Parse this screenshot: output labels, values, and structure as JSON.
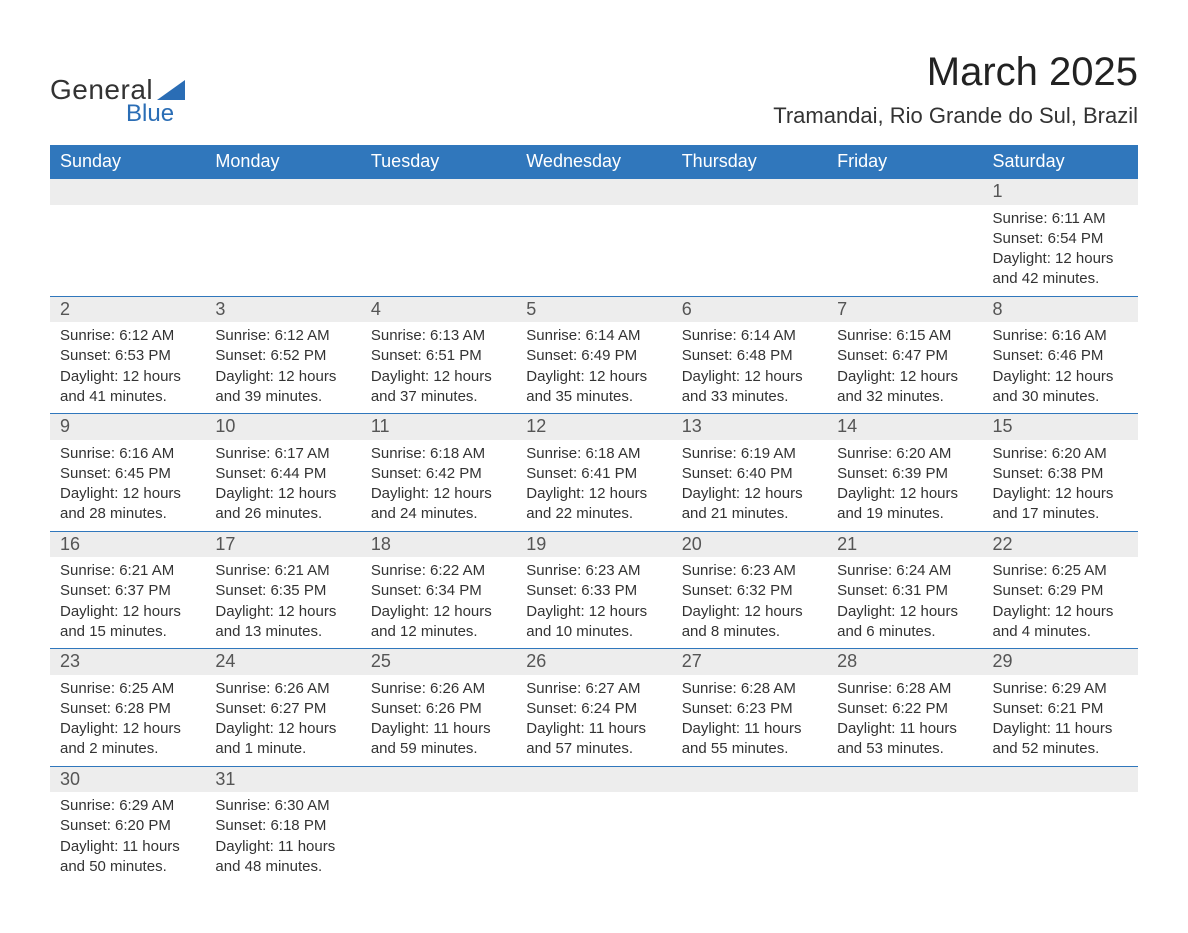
{
  "logo": {
    "top": "General",
    "bottom": "Blue",
    "shape_color": "#2a6db5"
  },
  "header": {
    "title": "March 2025",
    "location": "Tramandai, Rio Grande do Sul, Brazil"
  },
  "calendar": {
    "header_bg": "#3077bc",
    "header_fg": "#ffffff",
    "daynum_bg": "#ededed",
    "rule_color": "#3077bc",
    "day_labels": [
      "Sunday",
      "Monday",
      "Tuesday",
      "Wednesday",
      "Thursday",
      "Friday",
      "Saturday"
    ],
    "weeks": [
      [
        null,
        null,
        null,
        null,
        null,
        null,
        {
          "n": "1",
          "sunrise": "Sunrise: 6:11 AM",
          "sunset": "Sunset: 6:54 PM",
          "daylight": "Daylight: 12 hours and 42 minutes."
        }
      ],
      [
        {
          "n": "2",
          "sunrise": "Sunrise: 6:12 AM",
          "sunset": "Sunset: 6:53 PM",
          "daylight": "Daylight: 12 hours and 41 minutes."
        },
        {
          "n": "3",
          "sunrise": "Sunrise: 6:12 AM",
          "sunset": "Sunset: 6:52 PM",
          "daylight": "Daylight: 12 hours and 39 minutes."
        },
        {
          "n": "4",
          "sunrise": "Sunrise: 6:13 AM",
          "sunset": "Sunset: 6:51 PM",
          "daylight": "Daylight: 12 hours and 37 minutes."
        },
        {
          "n": "5",
          "sunrise": "Sunrise: 6:14 AM",
          "sunset": "Sunset: 6:49 PM",
          "daylight": "Daylight: 12 hours and 35 minutes."
        },
        {
          "n": "6",
          "sunrise": "Sunrise: 6:14 AM",
          "sunset": "Sunset: 6:48 PM",
          "daylight": "Daylight: 12 hours and 33 minutes."
        },
        {
          "n": "7",
          "sunrise": "Sunrise: 6:15 AM",
          "sunset": "Sunset: 6:47 PM",
          "daylight": "Daylight: 12 hours and 32 minutes."
        },
        {
          "n": "8",
          "sunrise": "Sunrise: 6:16 AM",
          "sunset": "Sunset: 6:46 PM",
          "daylight": "Daylight: 12 hours and 30 minutes."
        }
      ],
      [
        {
          "n": "9",
          "sunrise": "Sunrise: 6:16 AM",
          "sunset": "Sunset: 6:45 PM",
          "daylight": "Daylight: 12 hours and 28 minutes."
        },
        {
          "n": "10",
          "sunrise": "Sunrise: 6:17 AM",
          "sunset": "Sunset: 6:44 PM",
          "daylight": "Daylight: 12 hours and 26 minutes."
        },
        {
          "n": "11",
          "sunrise": "Sunrise: 6:18 AM",
          "sunset": "Sunset: 6:42 PM",
          "daylight": "Daylight: 12 hours and 24 minutes."
        },
        {
          "n": "12",
          "sunrise": "Sunrise: 6:18 AM",
          "sunset": "Sunset: 6:41 PM",
          "daylight": "Daylight: 12 hours and 22 minutes."
        },
        {
          "n": "13",
          "sunrise": "Sunrise: 6:19 AM",
          "sunset": "Sunset: 6:40 PM",
          "daylight": "Daylight: 12 hours and 21 minutes."
        },
        {
          "n": "14",
          "sunrise": "Sunrise: 6:20 AM",
          "sunset": "Sunset: 6:39 PM",
          "daylight": "Daylight: 12 hours and 19 minutes."
        },
        {
          "n": "15",
          "sunrise": "Sunrise: 6:20 AM",
          "sunset": "Sunset: 6:38 PM",
          "daylight": "Daylight: 12 hours and 17 minutes."
        }
      ],
      [
        {
          "n": "16",
          "sunrise": "Sunrise: 6:21 AM",
          "sunset": "Sunset: 6:37 PM",
          "daylight": "Daylight: 12 hours and 15 minutes."
        },
        {
          "n": "17",
          "sunrise": "Sunrise: 6:21 AM",
          "sunset": "Sunset: 6:35 PM",
          "daylight": "Daylight: 12 hours and 13 minutes."
        },
        {
          "n": "18",
          "sunrise": "Sunrise: 6:22 AM",
          "sunset": "Sunset: 6:34 PM",
          "daylight": "Daylight: 12 hours and 12 minutes."
        },
        {
          "n": "19",
          "sunrise": "Sunrise: 6:23 AM",
          "sunset": "Sunset: 6:33 PM",
          "daylight": "Daylight: 12 hours and 10 minutes."
        },
        {
          "n": "20",
          "sunrise": "Sunrise: 6:23 AM",
          "sunset": "Sunset: 6:32 PM",
          "daylight": "Daylight: 12 hours and 8 minutes."
        },
        {
          "n": "21",
          "sunrise": "Sunrise: 6:24 AM",
          "sunset": "Sunset: 6:31 PM",
          "daylight": "Daylight: 12 hours and 6 minutes."
        },
        {
          "n": "22",
          "sunrise": "Sunrise: 6:25 AM",
          "sunset": "Sunset: 6:29 PM",
          "daylight": "Daylight: 12 hours and 4 minutes."
        }
      ],
      [
        {
          "n": "23",
          "sunrise": "Sunrise: 6:25 AM",
          "sunset": "Sunset: 6:28 PM",
          "daylight": "Daylight: 12 hours and 2 minutes."
        },
        {
          "n": "24",
          "sunrise": "Sunrise: 6:26 AM",
          "sunset": "Sunset: 6:27 PM",
          "daylight": "Daylight: 12 hours and 1 minute."
        },
        {
          "n": "25",
          "sunrise": "Sunrise: 6:26 AM",
          "sunset": "Sunset: 6:26 PM",
          "daylight": "Daylight: 11 hours and 59 minutes."
        },
        {
          "n": "26",
          "sunrise": "Sunrise: 6:27 AM",
          "sunset": "Sunset: 6:24 PM",
          "daylight": "Daylight: 11 hours and 57 minutes."
        },
        {
          "n": "27",
          "sunrise": "Sunrise: 6:28 AM",
          "sunset": "Sunset: 6:23 PM",
          "daylight": "Daylight: 11 hours and 55 minutes."
        },
        {
          "n": "28",
          "sunrise": "Sunrise: 6:28 AM",
          "sunset": "Sunset: 6:22 PM",
          "daylight": "Daylight: 11 hours and 53 minutes."
        },
        {
          "n": "29",
          "sunrise": "Sunrise: 6:29 AM",
          "sunset": "Sunset: 6:21 PM",
          "daylight": "Daylight: 11 hours and 52 minutes."
        }
      ],
      [
        {
          "n": "30",
          "sunrise": "Sunrise: 6:29 AM",
          "sunset": "Sunset: 6:20 PM",
          "daylight": "Daylight: 11 hours and 50 minutes."
        },
        {
          "n": "31",
          "sunrise": "Sunrise: 6:30 AM",
          "sunset": "Sunset: 6:18 PM",
          "daylight": "Daylight: 11 hours and 48 minutes."
        },
        null,
        null,
        null,
        null,
        null
      ]
    ]
  }
}
